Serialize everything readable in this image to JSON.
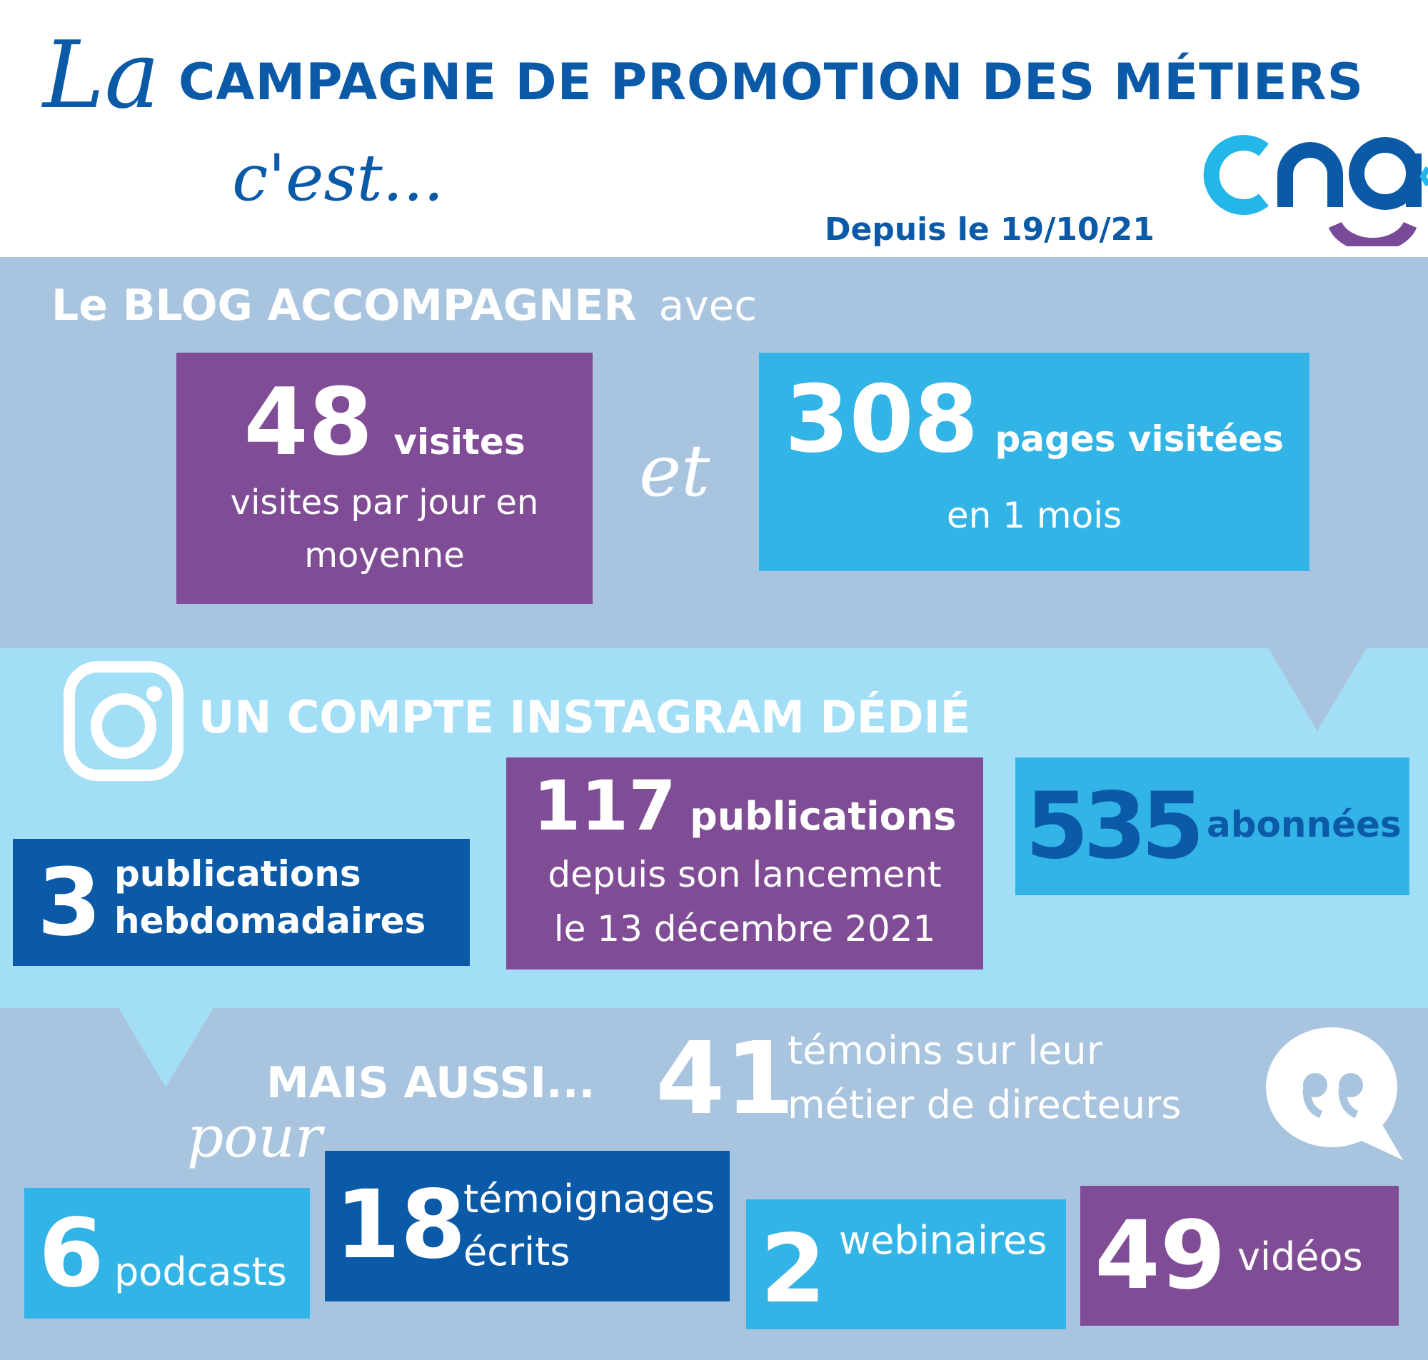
{
  "colors": {
    "dark_blue": "#0b5aa8",
    "purple": "#804c96",
    "sky_blue": "#33b4e6",
    "grey_blue": "#a9c4de",
    "light_blue": "#a3def7",
    "cng_cyan": "#23b6e8",
    "cng_blue": "#0b5aa8",
    "cng_purple": "#7a4a9a"
  },
  "header": {
    "script_la": "La",
    "title": "CAMPAGNE DE PROMOTION DES MÉTIERS",
    "script_cest": "c'est...",
    "since": "Depuis le 19/10/21",
    "logo_text": "cng"
  },
  "blog": {
    "heading": "Le BLOG ACCOMPAGNER",
    "heading_suffix": "avec",
    "visits_number": "48",
    "visits_label": "visites",
    "visits_desc_line1": "visites par jour en",
    "visits_desc_line2": "moyenne",
    "connector": "et",
    "pages_number": "308",
    "pages_label": "pages visitées",
    "pages_desc": "en 1 mois"
  },
  "instagram": {
    "icon": "instagram-icon",
    "heading": "UN COMPTE INSTAGRAM DÉDIÉ",
    "weekly_number": "3",
    "weekly_line1": "publications",
    "weekly_line2": "hebdomadaires",
    "posts_number": "117",
    "posts_label": "publications",
    "posts_desc_line1": "depuis son lancement",
    "posts_desc_line2": "le 13 décembre 2021",
    "followers_number": "535",
    "followers_label": "abonnées"
  },
  "more": {
    "heading": "MAIS AUSSI...",
    "witnesses_number": "41",
    "witnesses_line1": "témoins sur leur",
    "witnesses_line2": "métier de directeurs",
    "quote_icon": "speech-bubble-quote-icon",
    "connector": "pour",
    "podcasts_number": "6",
    "podcasts_label": "podcasts",
    "written_number": "18",
    "written_line1": "témoignages",
    "written_line2": "écrits",
    "webinars_number": "2",
    "webinars_label": "webinaires",
    "videos_number": "49",
    "videos_label": "vidéos"
  }
}
